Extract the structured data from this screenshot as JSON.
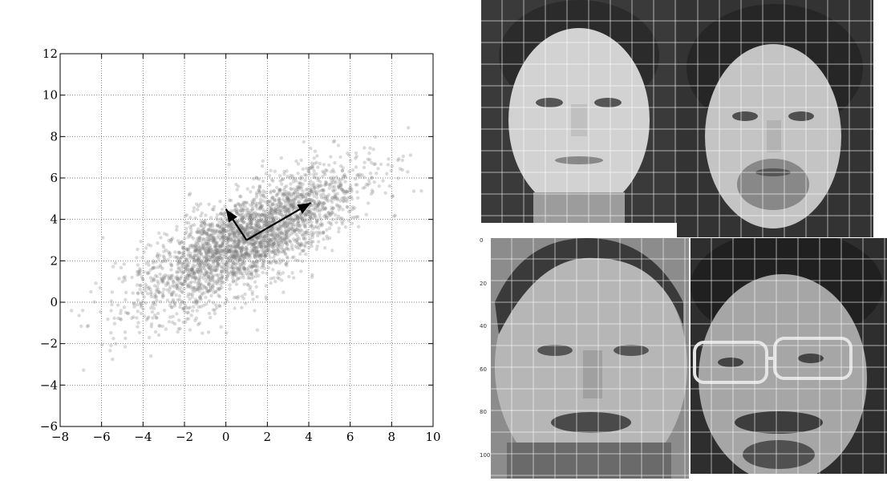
{
  "chart_data": {
    "type": "scatter",
    "title": "",
    "xlabel": "",
    "ylabel": "",
    "xlim": [
      -8,
      10
    ],
    "ylim": [
      -6,
      12
    ],
    "xticks": [
      "−8",
      "−6",
      "−4",
      "−2",
      "0",
      "2",
      "4",
      "6",
      "8",
      "10"
    ],
    "yticks": [
      "−6",
      "−4",
      "−2",
      "0",
      "2",
      "4",
      "6",
      "8",
      "10",
      "12"
    ],
    "grid": true,
    "grid_style": "dotted",
    "point_color": "#7a7a7a",
    "distribution": {
      "count": 3000,
      "mean": [
        1.0,
        3.0
      ],
      "principal_axis_1": {
        "direction": [
          0.866,
          0.5
        ],
        "std": 3.0
      },
      "principal_axis_2": {
        "direction": [
          -0.5,
          0.866
        ],
        "std": 1.0
      }
    },
    "arrows": [
      {
        "from": [
          1.0,
          3.0
        ],
        "to": [
          4.1,
          4.8
        ]
      },
      {
        "from": [
          1.0,
          3.0
        ],
        "to": [
          0.0,
          4.5
        ]
      }
    ]
  },
  "faces": {
    "panel_count": 4,
    "gridlines": true,
    "left_edge_ticks": [
      "0",
      "20",
      "40",
      "60",
      "80",
      "100"
    ]
  }
}
